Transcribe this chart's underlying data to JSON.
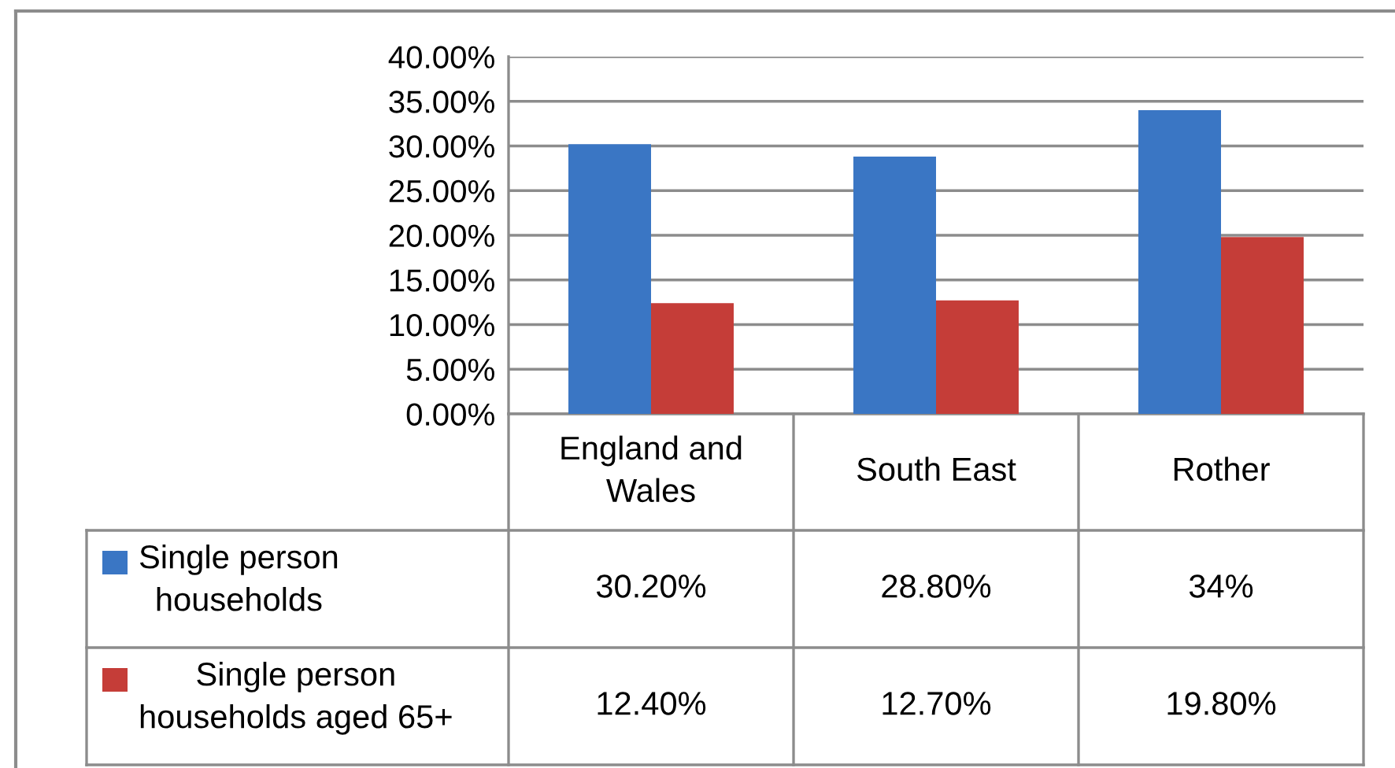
{
  "chart_data": {
    "type": "bar",
    "categories": [
      "England and Wales",
      "South East",
      "Rother"
    ],
    "series": [
      {
        "name": "Single person households",
        "color": "#3a76c4",
        "values": [
          30.2,
          28.8,
          34
        ],
        "value_labels": [
          "30.20%",
          "28.80%",
          "34%"
        ]
      },
      {
        "name": "Single person households aged 65+",
        "color": "#c53d38",
        "values": [
          12.4,
          12.7,
          19.8
        ],
        "value_labels": [
          "12.40%",
          "12.70%",
          "19.80%"
        ]
      }
    ],
    "ylim": [
      0,
      40
    ],
    "yticks": [
      {
        "value": 0,
        "label": "0.00%"
      },
      {
        "value": 5,
        "label": "5.00%"
      },
      {
        "value": 10,
        "label": "10.00%"
      },
      {
        "value": 15,
        "label": "15.00%"
      },
      {
        "value": 20,
        "label": "20.00%"
      },
      {
        "value": 25,
        "label": "25.00%"
      },
      {
        "value": 30,
        "label": "30.00%"
      },
      {
        "value": 35,
        "label": "35.00%"
      },
      {
        "value": 40,
        "label": "40.00%"
      }
    ],
    "grid": "y",
    "legend": "bottom"
  }
}
